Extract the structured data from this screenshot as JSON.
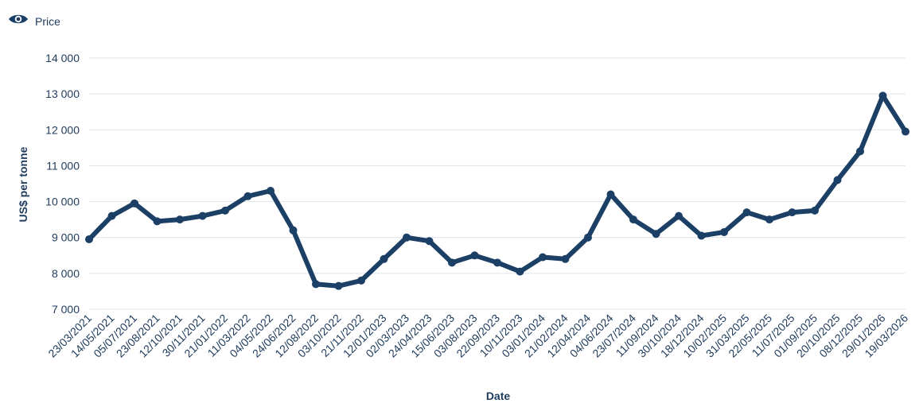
{
  "legend": {
    "label": "Price",
    "icon": "eye-icon"
  },
  "colors": {
    "series": "#1c3f66",
    "grid": "#dde3ea",
    "text": "#1f3b5c"
  },
  "chart_data": {
    "type": "line",
    "xlabel": "Date",
    "ylabel": "US$ per tonne",
    "ylim": [
      7000,
      14000
    ],
    "yticks": [
      7000,
      8000,
      9000,
      10000,
      11000,
      12000,
      13000,
      14000
    ],
    "ytick_labels": [
      "7 000",
      "8 000",
      "9 000",
      "10 000",
      "11 000",
      "12 000",
      "13 000",
      "14 000"
    ],
    "xtick_labels": [
      "23/03/2021",
      "14/05/2021",
      "05/07/2021",
      "23/08/2021",
      "12/10/2021",
      "30/11/2021",
      "21/01/2022",
      "11/03/2022",
      "04/05/2022",
      "24/06/2022",
      "12/08/2022",
      "03/10/2022",
      "21/11/2022",
      "12/01/2023",
      "02/03/2023",
      "24/04/2023",
      "15/06/2023",
      "03/08/2023",
      "22/09/2023",
      "10/11/2023",
      "03/01/2024",
      "21/02/2024",
      "12/04/2024",
      "04/06/2024",
      "23/07/2024",
      "11/09/2024",
      "30/10/2024",
      "18/12/2024",
      "10/02/2025",
      "31/03/2025",
      "22/05/2025",
      "11/07/2025",
      "01/09/2025",
      "20/10/2025",
      "08/12/2025",
      "29/01/2026",
      "19/03/2026"
    ],
    "legend_position": "top-left",
    "grid": true,
    "series": [
      {
        "name": "Price",
        "x": [
          "23/03/2021",
          "14/05/2021",
          "05/07/2021",
          "23/08/2021",
          "12/10/2021",
          "30/11/2021",
          "21/01/2022",
          "11/03/2022",
          "04/05/2022",
          "24/06/2022",
          "12/08/2022",
          "03/10/2022",
          "21/11/2022",
          "12/01/2023",
          "02/03/2023",
          "24/04/2023",
          "15/06/2023",
          "03/08/2023",
          "22/09/2023",
          "10/11/2023",
          "03/01/2024",
          "21/02/2024",
          "12/04/2024",
          "04/06/2024",
          "23/07/2024",
          "11/09/2024",
          "30/10/2024",
          "18/12/2024",
          "10/02/2025",
          "31/03/2025",
          "22/05/2025",
          "11/07/2025",
          "01/09/2025",
          "20/10/2025",
          "08/12/2025",
          "29/01/2026",
          "19/03/2026"
        ],
        "values": [
          8950,
          9600,
          9950,
          9450,
          9500,
          9600,
          9750,
          10150,
          10300,
          9200,
          7700,
          7650,
          7800,
          8400,
          9000,
          8900,
          8300,
          8500,
          8300,
          8050,
          8450,
          8400,
          9000,
          10200,
          9500,
          9100,
          9600,
          9050,
          9150,
          9700,
          9500,
          9700,
          9750,
          10600,
          11400,
          12950,
          11950
        ]
      }
    ]
  }
}
